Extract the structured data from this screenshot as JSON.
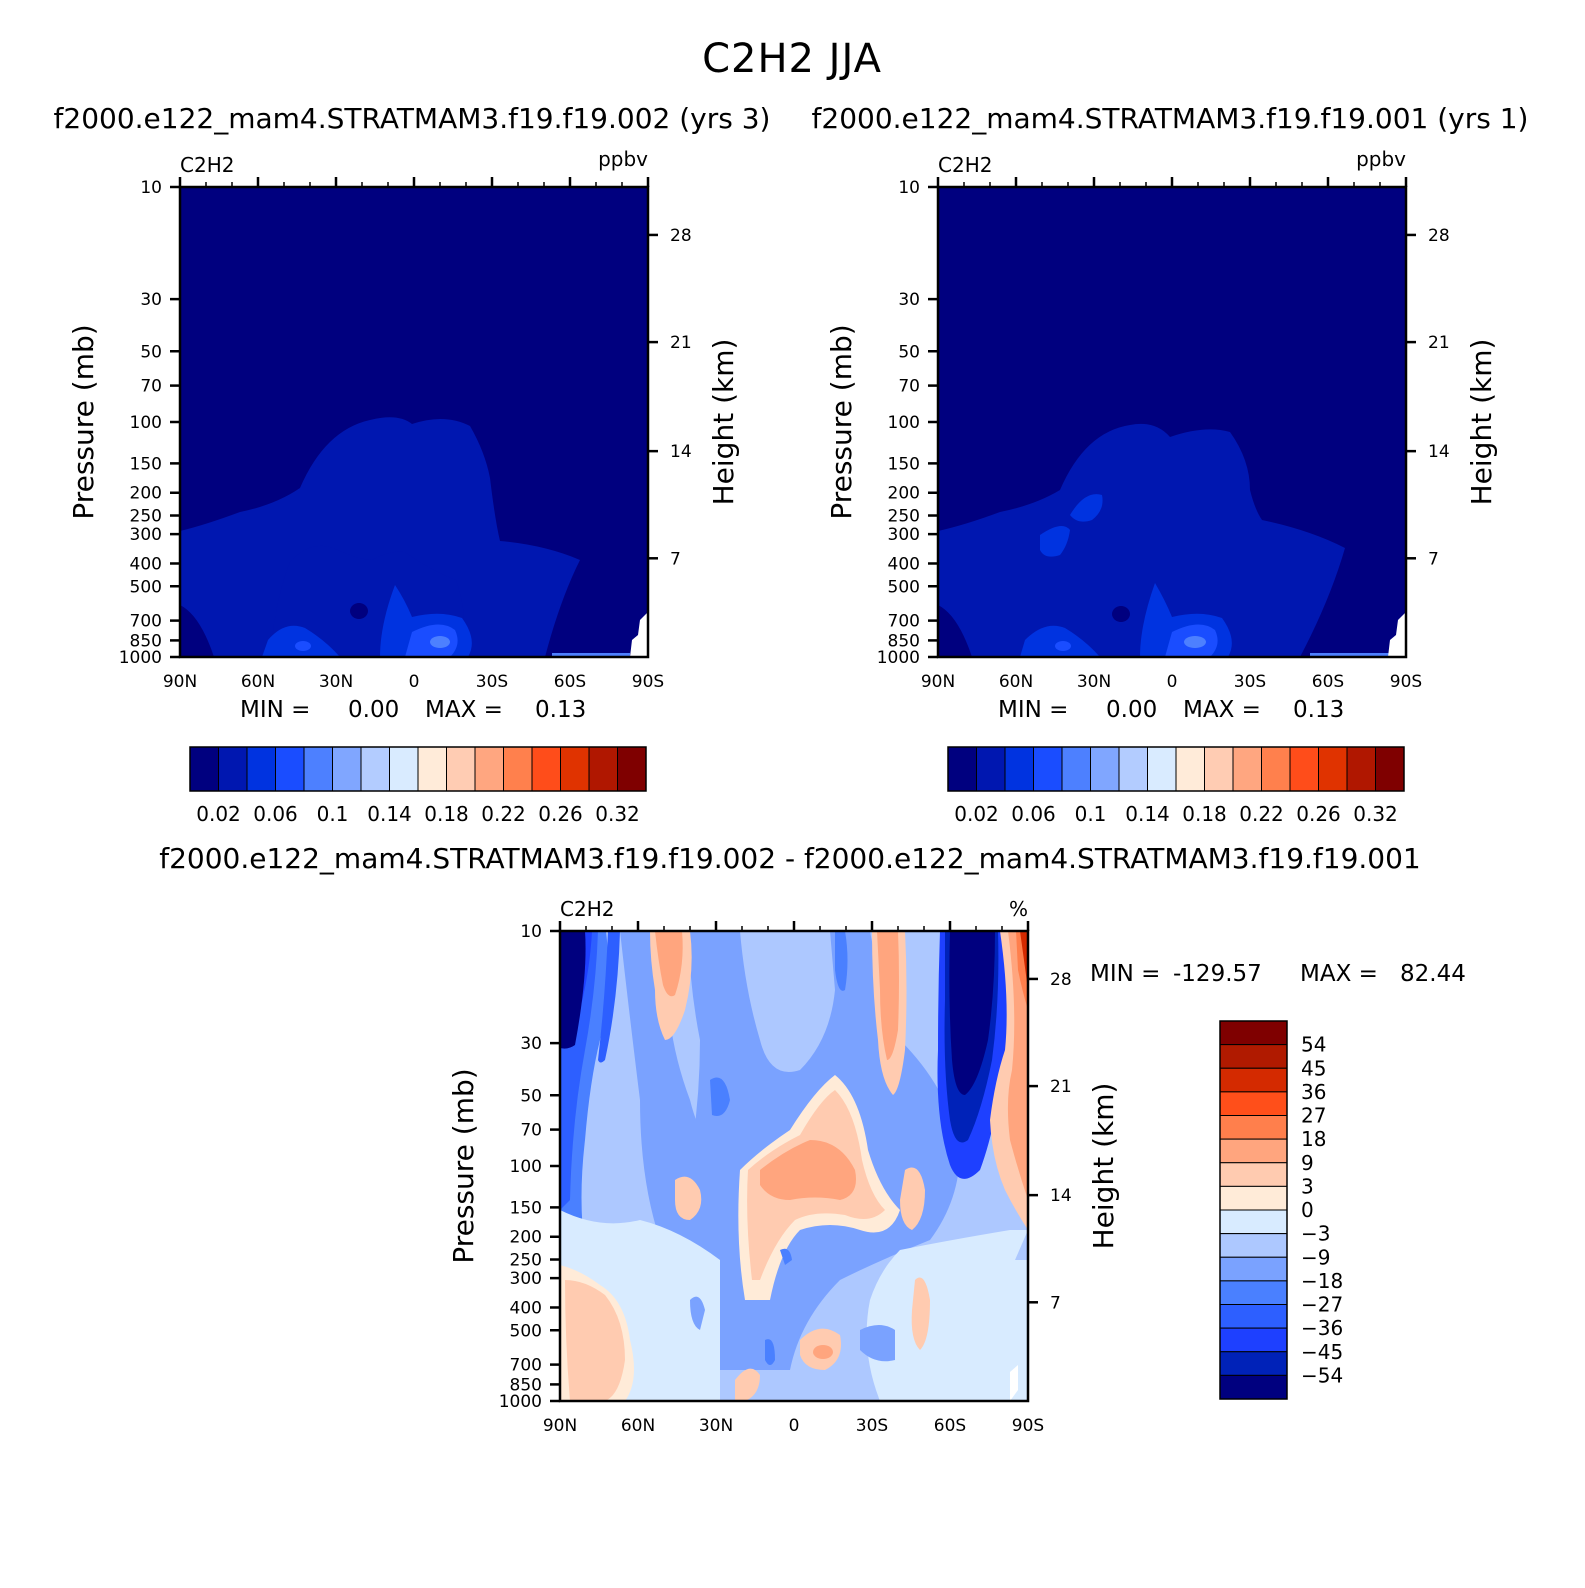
{
  "title": "C2H2 JJA",
  "colors": {
    "ppbv_scale": [
      "#00007f",
      "#0017b0",
      "#0033e0",
      "#1a4dff",
      "#4d80ff",
      "#80a6ff",
      "#b3ccff",
      "#d9ebff",
      "#ffebd9",
      "#ffccb3",
      "#ffa680",
      "#ff804d",
      "#ff4d1a",
      "#e03300",
      "#b01700",
      "#7f0000"
    ],
    "pct_scale": [
      "#00007f",
      "#0022b8",
      "#1e40ff",
      "#2d5fff",
      "#4a80ff",
      "#7aa2ff",
      "#adc8ff",
      "#d8ebff",
      "#ffebd8",
      "#ffcbb0",
      "#ffa57e",
      "#ff7f4c",
      "#ff4f1a",
      "#d42a00",
      "#b01a00",
      "#7f0000"
    ]
  },
  "chart_data": [
    {
      "type": "heatmap",
      "panel": "top-left",
      "subtitle": "f2000.e122_mam4.STRATMAM3.f19.f19.002 (yrs 3)",
      "variable": "C2H2",
      "units": "ppbv",
      "xlabel": "",
      "ylabel": "Pressure (mb)",
      "ylabel_right": "Height (km)",
      "x_ticks": [
        "90N",
        "60N",
        "30N",
        "0",
        "30S",
        "60S",
        "90S"
      ],
      "x_range": [
        90,
        -90
      ],
      "y_ticks": [
        "10",
        "30",
        "50",
        "70",
        "100",
        "150",
        "200",
        "250",
        "300",
        "400",
        "500",
        "700",
        "850",
        "1000"
      ],
      "y_range_mb": [
        10,
        1000
      ],
      "right_ticks": [
        "28",
        "21",
        "14",
        "7"
      ],
      "min_label": "MIN =",
      "min_value": "0.00",
      "max_label": "MAX =",
      "max_value": "0.13",
      "colorbar_labels": [
        "0.02",
        "0.06",
        "0.1",
        "0.14",
        "0.18",
        "0.22",
        "0.26",
        "0.32"
      ],
      "colorbar_levels": [
        0.02,
        0.04,
        0.06,
        0.08,
        0.1,
        0.12,
        0.14,
        0.16,
        0.18,
        0.2,
        0.22,
        0.24,
        0.26,
        0.28,
        0.32
      ]
    },
    {
      "type": "heatmap",
      "panel": "top-right",
      "subtitle": "f2000.e122_mam4.STRATMAM3.f19.f19.001 (yrs 1)",
      "variable": "C2H2",
      "units": "ppbv",
      "xlabel": "",
      "ylabel": "Pressure (mb)",
      "ylabel_right": "Height (km)",
      "x_ticks": [
        "90N",
        "60N",
        "30N",
        "0",
        "30S",
        "60S",
        "90S"
      ],
      "x_range": [
        90,
        -90
      ],
      "y_ticks": [
        "10",
        "30",
        "50",
        "70",
        "100",
        "150",
        "200",
        "250",
        "300",
        "400",
        "500",
        "700",
        "850",
        "1000"
      ],
      "y_range_mb": [
        10,
        1000
      ],
      "right_ticks": [
        "28",
        "21",
        "14",
        "7"
      ],
      "min_label": "MIN =",
      "min_value": "0.00",
      "max_label": "MAX =",
      "max_value": "0.13",
      "colorbar_labels": [
        "0.02",
        "0.06",
        "0.1",
        "0.14",
        "0.18",
        "0.22",
        "0.26",
        "0.32"
      ],
      "colorbar_levels": [
        0.02,
        0.04,
        0.06,
        0.08,
        0.1,
        0.12,
        0.14,
        0.16,
        0.18,
        0.2,
        0.22,
        0.24,
        0.26,
        0.28,
        0.32
      ]
    },
    {
      "type": "heatmap",
      "panel": "bottom",
      "subtitle": "f2000.e122_mam4.STRATMAM3.f19.f19.002 - f2000.e122_mam4.STRATMAM3.f19.f19.001",
      "variable": "C2H2",
      "units": "%",
      "xlabel": "",
      "ylabel": "Pressure (mb)",
      "ylabel_right": "Height (km)",
      "x_ticks": [
        "90N",
        "60N",
        "30N",
        "0",
        "30S",
        "60S",
        "90S"
      ],
      "x_range": [
        90,
        -90
      ],
      "y_ticks": [
        "10",
        "30",
        "50",
        "70",
        "100",
        "150",
        "200",
        "250",
        "300",
        "400",
        "500",
        "700",
        "850",
        "1000"
      ],
      "y_range_mb": [
        10,
        1000
      ],
      "right_ticks": [
        "28",
        "21",
        "14",
        "7"
      ],
      "min_label": "MIN =",
      "min_value": "-129.57",
      "max_label": "MAX =",
      "max_value": "82.44",
      "colorbar_labels": [
        "54",
        "45",
        "36",
        "27",
        "18",
        "9",
        "3",
        "0",
        "-3",
        "-9",
        "-18",
        "-27",
        "-36",
        "-45",
        "-54"
      ],
      "colorbar_levels": [
        -54,
        -45,
        -36,
        -27,
        -18,
        -9,
        -3,
        0,
        3,
        9,
        18,
        27,
        36,
        45,
        54
      ]
    }
  ]
}
